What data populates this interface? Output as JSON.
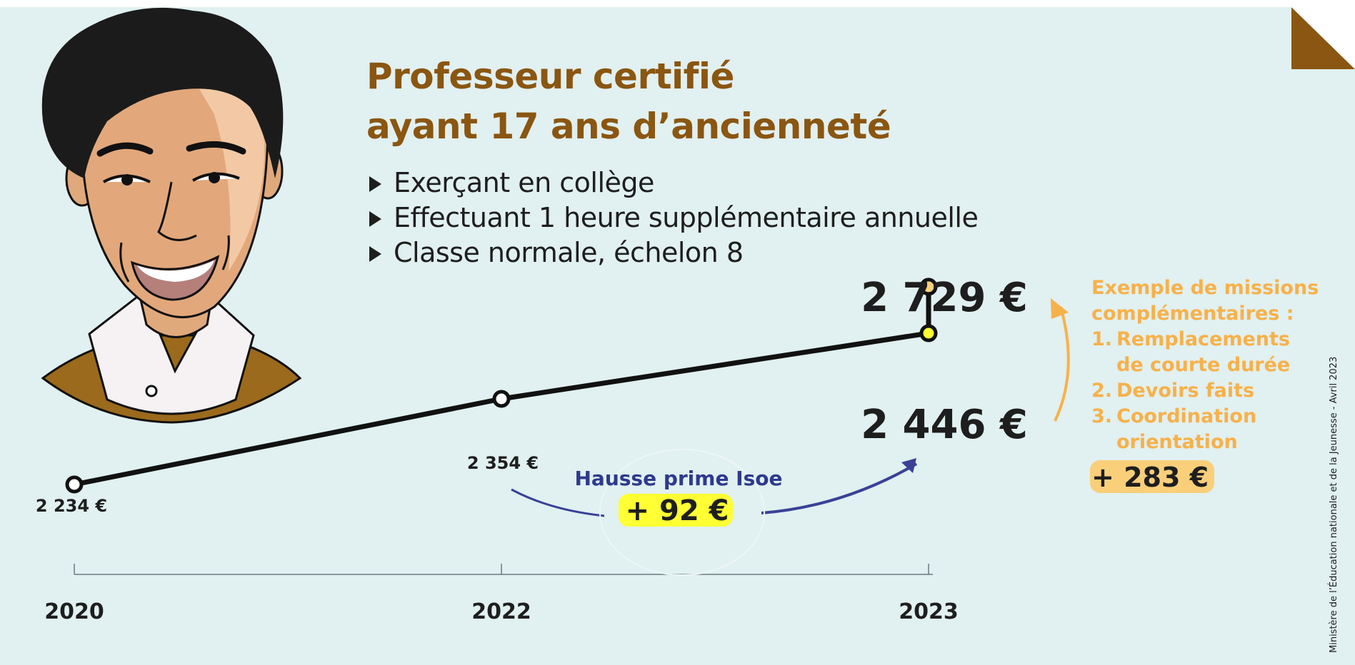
{
  "title_line1": "Professeur certifié",
  "title_line2": "ayant 17 ans d’ancienneté",
  "bullets": [
    "Exerçant en collège",
    "Effectuant 1 heure supplémentaire annuelle",
    "Classe normale, échelon 8"
  ],
  "colors": {
    "background": "#e1f0f0",
    "title": "#8a5611",
    "line": "#111111",
    "isoe": "#2e3a8c",
    "highlight_yellow": "#ffff33",
    "missions": "#f7b14a",
    "missions_highlight": "#f9cf7a"
  },
  "chart_data": {
    "type": "line",
    "title": "Professeur certifié ayant 17 ans d’ancienneté",
    "x": [
      "2020",
      "2022",
      "2023"
    ],
    "series": [
      {
        "values": [
          2234,
          2354,
          2446
        ],
        "labels": [
          "2 234 €",
          "2 354 €",
          "2 446 €"
        ]
      }
    ],
    "extra_point": {
      "x": "2023",
      "value": 2729,
      "label": "2 729 €"
    },
    "annotations": {
      "isoe_title": "Hausse prime Isoe",
      "isoe_amount": "+ 92 €",
      "missions_heading": [
        "Exemple de missions",
        "complémentaires :"
      ],
      "missions_items": [
        {
          "num": "1.",
          "lines": [
            "Remplacements",
            "de courte durée"
          ]
        },
        {
          "num": "2.",
          "lines": [
            "Devoirs faits"
          ]
        },
        {
          "num": "3.",
          "lines": [
            "Coordination",
            "orientation"
          ]
        }
      ],
      "missions_amount": "+ 283 €"
    },
    "grid": false,
    "legend": "none"
  },
  "source": "Ministère de l’Éducation nationale et de la Jeunesse - Avril 2023",
  "portrait_icon": "teacher-portrait-illustration"
}
